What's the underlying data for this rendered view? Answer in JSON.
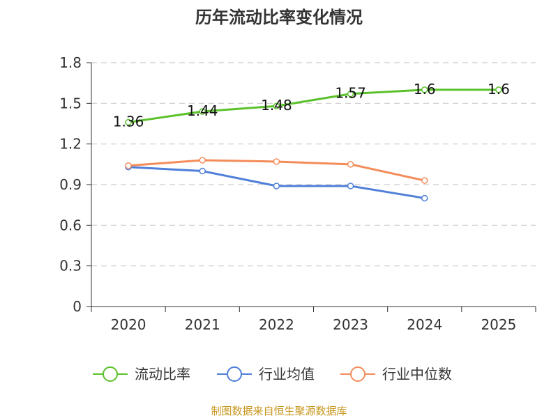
{
  "chart_data": {
    "type": "line",
    "title": "历年流动比率变化情况",
    "categories": [
      "2020",
      "2021",
      "2022",
      "2023",
      "2024",
      "2025"
    ],
    "y_ticks": [
      "0",
      "0.3",
      "0.6",
      "0.9",
      "1.2",
      "1.5",
      "1.8"
    ],
    "ylim": [
      0,
      1.8
    ],
    "grid": true,
    "legend_position": "bottom",
    "series": [
      {
        "name": "流动比率",
        "color": "#5ac12a",
        "values": [
          1.36,
          1.44,
          1.48,
          1.57,
          1.6,
          1.6
        ],
        "labels": [
          "1.36",
          "1.44",
          "1.48",
          "1.57",
          "1.6",
          "1.6"
        ]
      },
      {
        "name": "行业均值",
        "color": "#4f7fd8",
        "values": [
          1.03,
          1.0,
          0.89,
          0.89,
          0.8,
          null
        ]
      },
      {
        "name": "行业中位数",
        "color": "#f48c5a",
        "values": [
          1.04,
          1.08,
          1.07,
          1.05,
          0.93,
          null
        ]
      }
    ],
    "source": "制图数据来自恒生聚源数据库"
  }
}
